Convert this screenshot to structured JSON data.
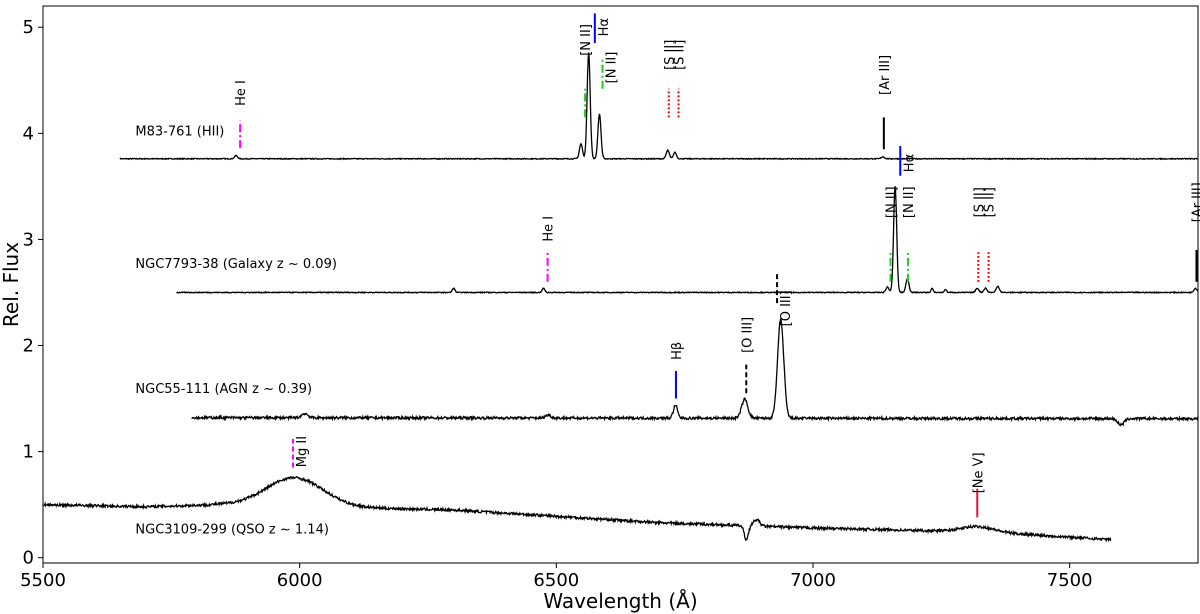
{
  "chart_data": {
    "type": "line",
    "xlabel": "Wavelength (Å)",
    "ylabel": "Rel. Flux",
    "xlim": [
      5500,
      7750
    ],
    "ylim": [
      -0.05,
      5.2
    ],
    "xticks": [
      5500,
      6000,
      6500,
      7000,
      7500
    ],
    "yticks": [
      0,
      1,
      2,
      3,
      4,
      5
    ],
    "grid": false,
    "series": [
      {
        "name": "M83-761 (HII)",
        "label_pos": [
          5680,
          3.98
        ],
        "baseline": 3.76,
        "x_range": [
          5650,
          7750
        ],
        "noise": 0.004,
        "continuum": [],
        "features": [
          {
            "x": 5876,
            "amp": 0.03,
            "w": 3
          },
          {
            "x": 6548,
            "amp": 0.14,
            "w": 3
          },
          {
            "x": 6563,
            "amp": 1.0,
            "w": 3
          },
          {
            "x": 6584,
            "amp": 0.42,
            "w": 3
          },
          {
            "x": 6717,
            "amp": 0.08,
            "w": 3
          },
          {
            "x": 6731,
            "amp": 0.06,
            "w": 3
          },
          {
            "x": 7136,
            "amp": 0.02,
            "w": 3
          }
        ]
      },
      {
        "name": "NGC7793-38 (Galaxy z ~ 0.09)",
        "label_pos": [
          5680,
          2.73
        ],
        "baseline": 2.5,
        "x_range": [
          5760,
          7750
        ],
        "noise": 0.004,
        "continuum": [],
        "features": [
          {
            "x": 6300,
            "amp": 0.04,
            "w": 2.5
          },
          {
            "x": 6475,
            "amp": 0.04,
            "w": 2.5
          },
          {
            "x": 7145,
            "amp": 0.05,
            "w": 3
          },
          {
            "x": 7160,
            "amp": 1.0,
            "w": 3
          },
          {
            "x": 7184,
            "amp": 0.13,
            "w": 3
          },
          {
            "x": 7232,
            "amp": 0.04,
            "w": 2
          },
          {
            "x": 7258,
            "amp": 0.03,
            "w": 2
          },
          {
            "x": 7320,
            "amp": 0.04,
            "w": 3
          },
          {
            "x": 7336,
            "amp": 0.04,
            "w": 3
          },
          {
            "x": 7360,
            "amp": 0.06,
            "w": 3
          },
          {
            "x": 7745,
            "amp": 0.04,
            "w": 3
          }
        ]
      },
      {
        "name": "NGC55-111 (AGN z ~ 0.39)",
        "label_pos": [
          5680,
          1.55
        ],
        "baseline": 1.32,
        "x_range": [
          5790,
          7750
        ],
        "noise": 0.012,
        "continuum": [
          [
            5790,
            1.32
          ],
          [
            7750,
            1.31
          ]
        ],
        "features": [
          {
            "x": 6010,
            "amp": 0.04,
            "w": 6
          },
          {
            "x": 6484,
            "amp": 0.03,
            "w": 5
          },
          {
            "x": 6732,
            "amp": 0.12,
            "w": 4
          },
          {
            "x": 6867,
            "amp": 0.18,
            "w": 6
          },
          {
            "x": 6937,
            "amp": 0.93,
            "w": 6
          },
          {
            "x": 7600,
            "amp": -0.06,
            "w": 6
          }
        ]
      },
      {
        "name": "NGC3109-299 (QSO z ~ 1.14)",
        "label_pos": [
          5680,
          0.23
        ],
        "baseline": 0.48,
        "x_range": [
          5500,
          7580
        ],
        "noise": 0.012,
        "continuum": [
          [
            5500,
            0.5
          ],
          [
            5700,
            0.48
          ],
          [
            5850,
            0.5
          ],
          [
            6300,
            0.45
          ],
          [
            6700,
            0.33
          ],
          [
            7000,
            0.28
          ],
          [
            7350,
            0.24
          ],
          [
            7580,
            0.17
          ]
        ],
        "features": [
          {
            "x": 5990,
            "amp": 0.27,
            "w": 55
          },
          {
            "x": 6870,
            "amp": -0.13,
            "w": 4
          },
          {
            "x": 6890,
            "amp": 0.06,
            "w": 6
          },
          {
            "x": 7320,
            "amp": 0.05,
            "w": 30
          }
        ]
      }
    ],
    "annotations": [
      {
        "label": "He I",
        "x": 5884,
        "y0": 3.86,
        "y1": 4.12,
        "color": "#ff00ff",
        "dash": "8,3,2,3",
        "text_y": 4.38
      },
      {
        "label": "[N II]",
        "x": 6556,
        "y0": 4.15,
        "y1": 4.42,
        "color": "#22cc22",
        "dash": "8,3,2,3",
        "text_y": 4.88
      },
      {
        "label": "Hα",
        "x": 6575,
        "y0": 4.85,
        "y1": 5.13,
        "color": "#0000ff",
        "dash": "",
        "text_y": 5.0,
        "side": "right"
      },
      {
        "label": "[N II]",
        "x": 6590,
        "y0": 4.42,
        "y1": 4.7,
        "color": "#22cc22",
        "dash": "8,3,2,3",
        "text_y": 4.62,
        "side": "right"
      },
      {
        "label": "[S II]",
        "x": 6719,
        "y0": 4.15,
        "y1": 4.42,
        "color": "#ff0000",
        "dash": "2,2",
        "text_y": 4.74
      },
      {
        "label": "[S II]",
        "x": 6738,
        "y0": 4.15,
        "y1": 4.42,
        "color": "#ff0000",
        "dash": "2,2",
        "text_y": 4.74
      },
      {
        "label": "[Ar III]",
        "x": 7138,
        "y0": 3.85,
        "y1": 4.15,
        "color": "#000000",
        "dash": "",
        "text_y": 4.55
      },
      {
        "label": "He I",
        "x": 6483,
        "y0": 2.6,
        "y1": 2.88,
        "color": "#ff00ff",
        "dash": "8,3,2,3",
        "text_y": 3.1
      },
      {
        "label": "[N II]",
        "x": 7151,
        "y0": 2.6,
        "y1": 2.88,
        "color": "#22cc22",
        "dash": "8,3,2,3",
        "text_y": 3.35
      },
      {
        "label": "Hα",
        "x": 7170,
        "y0": 3.6,
        "y1": 3.88,
        "color": "#0000ff",
        "dash": "",
        "text_y": 3.72,
        "side": "right"
      },
      {
        "label": "[N II]",
        "x": 7185,
        "y0": 2.6,
        "y1": 2.88,
        "color": "#22cc22",
        "dash": "8,3,2,3",
        "text_y": 3.35
      },
      {
        "label": "[S II]",
        "x": 7322,
        "y0": 2.6,
        "y1": 2.88,
        "color": "#ff0000",
        "dash": "2,2",
        "text_y": 3.35
      },
      {
        "label": "[S II]",
        "x": 7342,
        "y0": 2.6,
        "y1": 2.88,
        "color": "#ff0000",
        "dash": "2,2",
        "text_y": 3.35
      },
      {
        "label": "[Ar III]",
        "x": 7747,
        "y0": 2.6,
        "y1": 2.9,
        "color": "#000000",
        "dash": "",
        "text_y": 3.35
      },
      {
        "label": "Hβ",
        "x": 6733,
        "y0": 1.5,
        "y1": 1.76,
        "color": "#0000ff",
        "dash": "",
        "text_y": 1.95
      },
      {
        "label": "[O III]",
        "x": 6870,
        "y0": 1.55,
        "y1": 1.82,
        "color": "#000000",
        "dash": "5,3",
        "text_y": 2.1
      },
      {
        "label": "[O III]",
        "x": 6930,
        "y0": 2.4,
        "y1": 2.7,
        "color": "#000000",
        "dash": "5,3",
        "text_y": 2.35,
        "side": "right"
      },
      {
        "label": "Mg II",
        "x": 5987,
        "y0": 0.85,
        "y1": 1.12,
        "color": "#ff00ff",
        "dash": "5,3",
        "text_y": 1.0,
        "side": "right"
      },
      {
        "label": "[Ne V]",
        "x": 7320,
        "y0": 0.38,
        "y1": 0.65,
        "color": "#dc143c",
        "dash": "",
        "text_y": 0.8
      }
    ]
  }
}
